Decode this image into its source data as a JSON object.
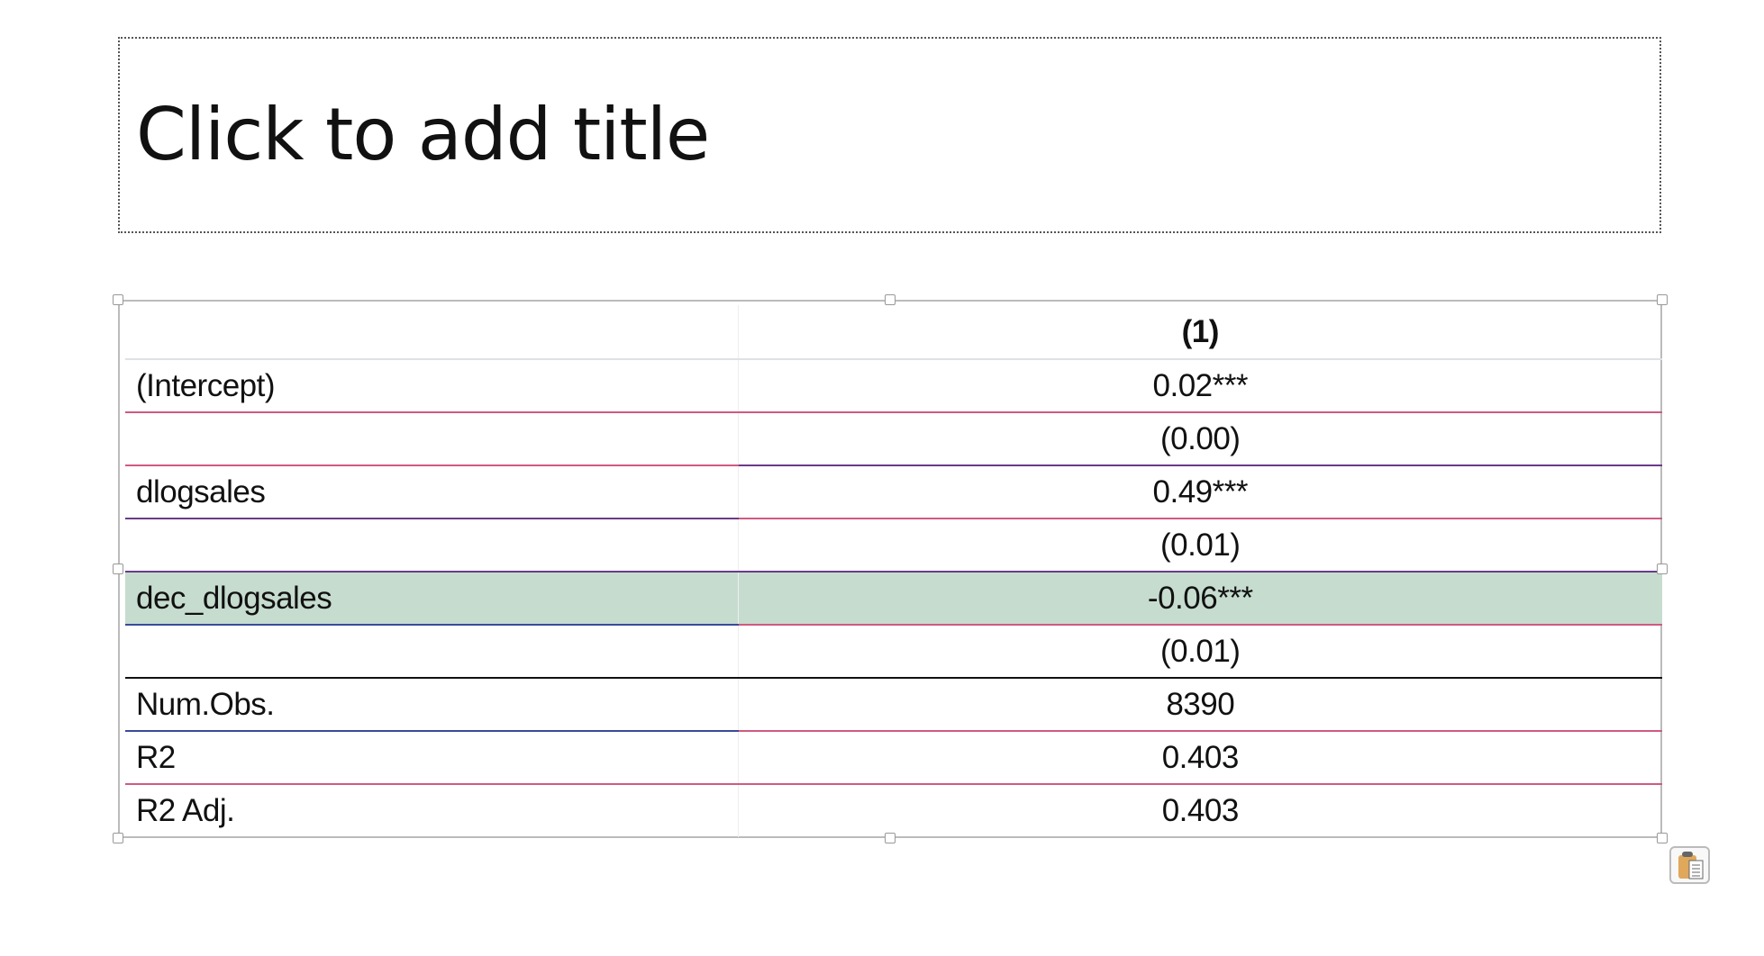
{
  "title_placeholder": "Click to add title",
  "table": {
    "header": [
      "",
      "(1)"
    ],
    "rows": [
      [
        "(Intercept)",
        "0.02***"
      ],
      [
        "",
        "(0.00)"
      ],
      [
        "dlogsales",
        "0.49***"
      ],
      [
        "",
        "(0.01)"
      ],
      [
        "dec_dlogsales",
        "-0.06***"
      ],
      [
        "",
        "(0.01)"
      ],
      [
        "Num.Obs.",
        "8390"
      ],
      [
        "R2",
        "0.403"
      ],
      [
        "R2 Adj.",
        "0.403"
      ]
    ],
    "highlight_color": "#c6dccf"
  },
  "icons": {
    "paste_options": "clipboard-icon"
  }
}
